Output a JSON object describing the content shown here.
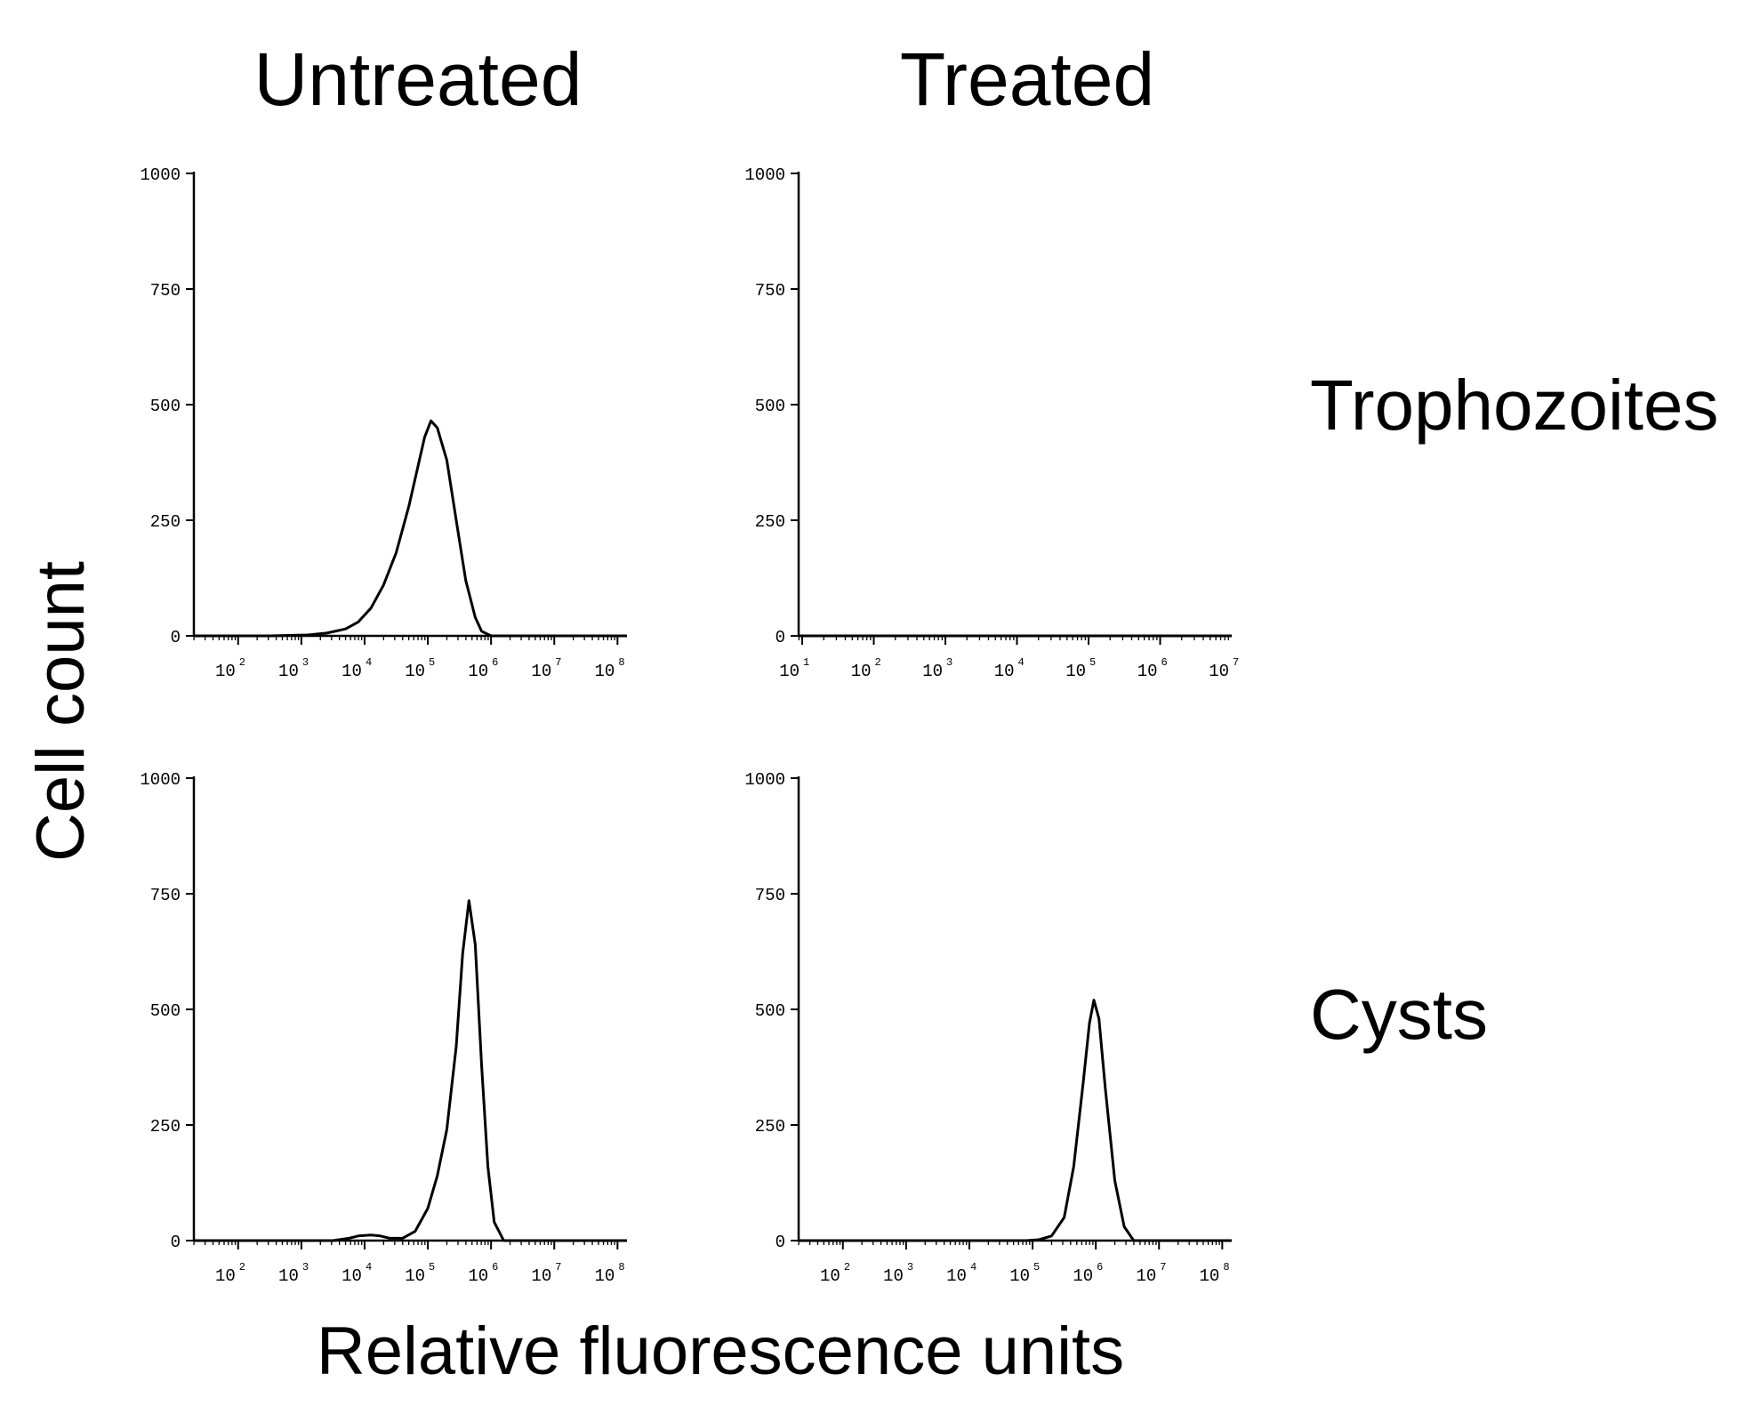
{
  "labels": {
    "col_untreated": "Untreated",
    "col_treated": "Treated",
    "row_trophozoites": "Trophozoites",
    "row_cysts": "Cysts",
    "ylabel": "Cell count",
    "xlabel": "Relative fluorescence units"
  },
  "colors": {
    "line": "#000000",
    "background": "#ffffff"
  },
  "chart_data": [
    {
      "id": "untreated-trophozoites",
      "type": "line",
      "title": "Untreated / Trophozoites",
      "xscale": "log",
      "xlim_exp": [
        1.3,
        8.15
      ],
      "ylim": [
        0,
        1000
      ],
      "yticks": [
        0,
        250,
        500,
        750,
        1000
      ],
      "xtick_labels": [
        {
          "base": "10",
          "exp": "2"
        },
        {
          "base": "10",
          "exp": "3"
        },
        {
          "base": "10",
          "exp": "4"
        },
        {
          "base": "10",
          "exp": "5"
        },
        {
          "base": "10",
          "exp": "6"
        },
        {
          "base": "10",
          "exp": "7"
        },
        {
          "base": "10",
          "exp": "8"
        }
      ],
      "series": [
        {
          "name": "histogram",
          "x_exp": [
            1.3,
            2.5,
            3.1,
            3.4,
            3.7,
            3.9,
            4.1,
            4.3,
            4.5,
            4.7,
            4.85,
            4.95,
            5.05,
            5.15,
            5.3,
            5.45,
            5.6,
            5.75,
            5.85,
            6.0,
            8.15
          ],
          "y": [
            0,
            0,
            2,
            6,
            15,
            30,
            60,
            110,
            180,
            280,
            370,
            430,
            465,
            450,
            380,
            250,
            120,
            40,
            10,
            0,
            0
          ]
        }
      ]
    },
    {
      "id": "treated-trophozoites",
      "type": "line",
      "title": "Treated / Trophozoites",
      "xscale": "log",
      "xlim_exp": [
        0.95,
        7.0
      ],
      "ylim": [
        0,
        1000
      ],
      "yticks": [
        0,
        250,
        500,
        750,
        1000
      ],
      "xtick_labels": [
        {
          "base": "10",
          "exp": "1"
        },
        {
          "base": "10",
          "exp": "2"
        },
        {
          "base": "10",
          "exp": "3"
        },
        {
          "base": "10",
          "exp": "4"
        },
        {
          "base": "10",
          "exp": "5"
        },
        {
          "base": "10",
          "exp": "6"
        },
        {
          "base": "10",
          "exp": "7"
        }
      ],
      "series": [
        {
          "name": "histogram",
          "x_exp": [
            0.95,
            7.0
          ],
          "y": [
            0,
            0
          ]
        }
      ]
    },
    {
      "id": "untreated-cysts",
      "type": "line",
      "title": "Untreated / Cysts",
      "xscale": "log",
      "xlim_exp": [
        1.3,
        8.15
      ],
      "ylim": [
        0,
        1000
      ],
      "yticks": [
        0,
        250,
        500,
        750,
        1000
      ],
      "xtick_labels": [
        {
          "base": "10",
          "exp": "2"
        },
        {
          "base": "10",
          "exp": "3"
        },
        {
          "base": "10",
          "exp": "4"
        },
        {
          "base": "10",
          "exp": "5"
        },
        {
          "base": "10",
          "exp": "6"
        },
        {
          "base": "10",
          "exp": "7"
        },
        {
          "base": "10",
          "exp": "8"
        }
      ],
      "series": [
        {
          "name": "histogram",
          "x_exp": [
            1.3,
            3.5,
            3.75,
            3.9,
            4.1,
            4.25,
            4.4,
            4.6,
            4.8,
            5.0,
            5.15,
            5.3,
            5.45,
            5.55,
            5.65,
            5.75,
            5.85,
            5.95,
            6.05,
            6.2,
            8.15
          ],
          "y": [
            0,
            0,
            5,
            10,
            12,
            10,
            5,
            5,
            20,
            70,
            140,
            240,
            420,
            620,
            735,
            640,
            380,
            160,
            40,
            0,
            0
          ]
        }
      ]
    },
    {
      "id": "treated-cysts",
      "type": "line",
      "title": "Treated / Cysts",
      "xscale": "log",
      "xlim_exp": [
        1.3,
        8.15
      ],
      "ylim": [
        0,
        1000
      ],
      "yticks": [
        0,
        250,
        500,
        750,
        1000
      ],
      "xtick_labels": [
        {
          "base": "10",
          "exp": "2"
        },
        {
          "base": "10",
          "exp": "3"
        },
        {
          "base": "10",
          "exp": "4"
        },
        {
          "base": "10",
          "exp": "5"
        },
        {
          "base": "10",
          "exp": "6"
        },
        {
          "base": "10",
          "exp": "7"
        },
        {
          "base": "10",
          "exp": "8"
        }
      ],
      "series": [
        {
          "name": "histogram",
          "x_exp": [
            1.3,
            4.9,
            5.1,
            5.3,
            5.5,
            5.65,
            5.8,
            5.9,
            5.97,
            6.05,
            6.15,
            6.3,
            6.45,
            6.6,
            8.15
          ],
          "y": [
            0,
            0,
            2,
            10,
            50,
            160,
            340,
            470,
            520,
            480,
            330,
            130,
            30,
            0,
            0
          ]
        }
      ]
    }
  ]
}
